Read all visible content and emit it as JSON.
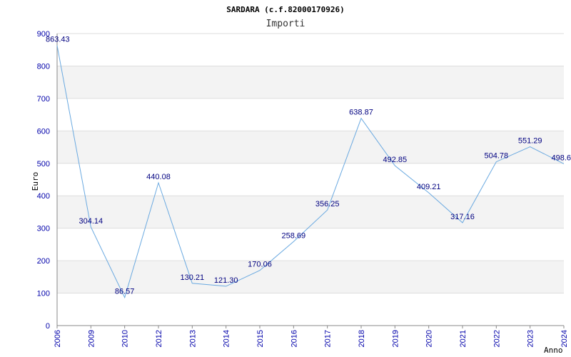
{
  "chart_data": {
    "type": "line",
    "title": "SARDARA (c.f.82000170926)",
    "subtitle": "Importi",
    "xlabel": "Anno",
    "ylabel": "Euro",
    "ylim": [
      0,
      900
    ],
    "yticks": [
      "0",
      "100",
      "200",
      "300",
      "400",
      "500",
      "600",
      "700",
      "800",
      "900"
    ],
    "grid": true,
    "categories": [
      "2006",
      "2009",
      "2010",
      "2012",
      "2013",
      "2014",
      "2015",
      "2016",
      "2017",
      "2018",
      "2019",
      "2020",
      "2021",
      "2022",
      "2023",
      "2024"
    ],
    "values": [
      863.43,
      304.14,
      86.57,
      440.08,
      130.21,
      121.3,
      170.06,
      258.69,
      356.25,
      638.87,
      492.85,
      409.21,
      317.16,
      504.78,
      551.29,
      498.6
    ],
    "data_labels": [
      "863.43",
      "304.14",
      "86.57",
      "440.08",
      "130.21",
      "121.30",
      "170.06",
      "258.69",
      "356.25",
      "638.87",
      "492.85",
      "409.21",
      "317.16",
      "504.78",
      "551.29",
      "498.6"
    ],
    "colors": {
      "line": "#6aa9e0",
      "band": "#f3f3f3",
      "tick_text": "#0000aa",
      "label_text": "#000080"
    }
  }
}
